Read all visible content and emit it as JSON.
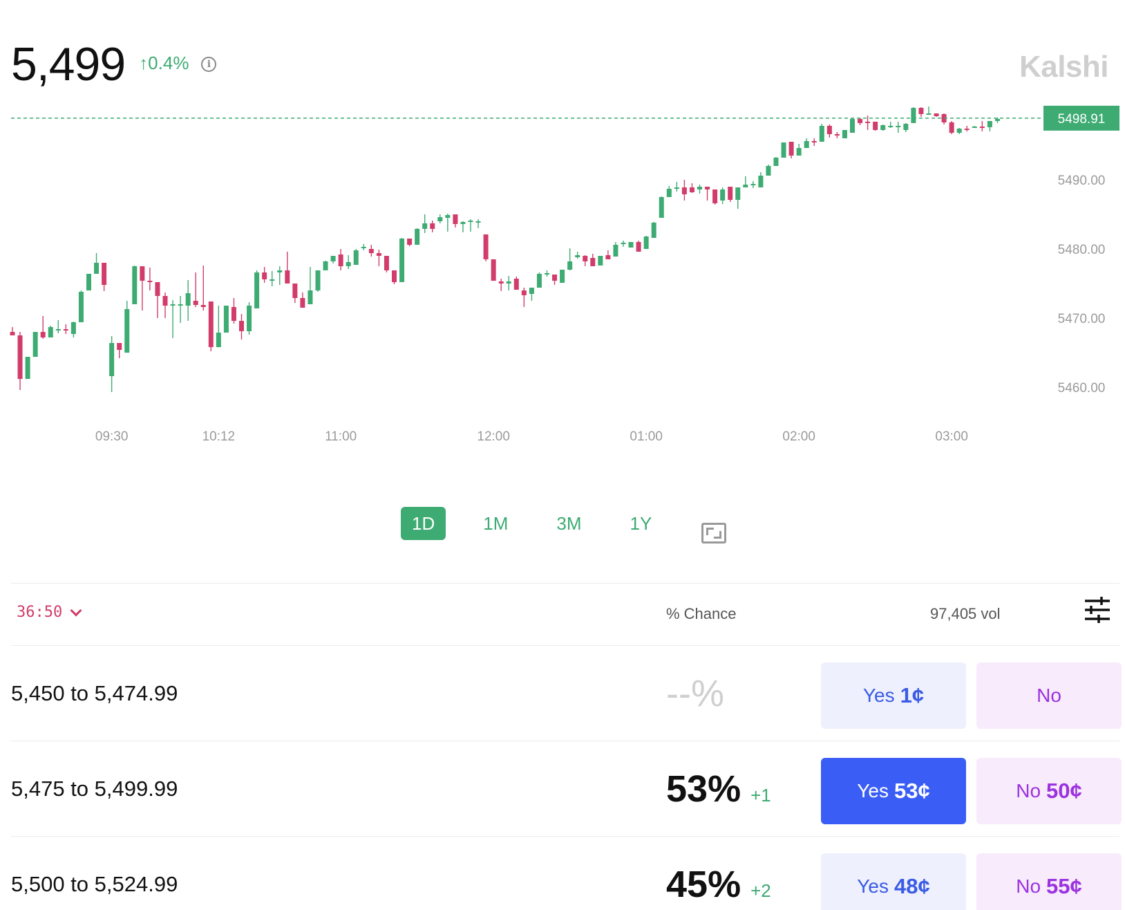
{
  "header": {
    "price": "5,499",
    "change": "↑0.4%",
    "info_icon": "info-icon",
    "brand": "Kalshi"
  },
  "colors": {
    "up": "#3dab72",
    "down": "#d23c6a",
    "yes_bg": "#eef0fd",
    "yes_selected": "#3a5ef5",
    "no_bg": "#f7ebfc"
  },
  "chart_data": {
    "type": "candlestick",
    "current_price_label": "5498.91",
    "current_price": 5498.91,
    "y_ticks": [
      "5490.00",
      "5480.00",
      "5470.00",
      "5460.00"
    ],
    "y_tick_values": [
      5490,
      5480,
      5470,
      5460
    ],
    "ylim": [
      5458,
      5500
    ],
    "x_ticks": [
      "09:30",
      "10:12",
      "11:00",
      "12:00",
      "01:00",
      "02:00",
      "03:00"
    ],
    "x_tick_index": [
      13,
      27,
      43,
      63,
      83,
      103,
      123
    ],
    "grid": false,
    "candles": [
      {
        "o": 5468.0,
        "h": 5468.7,
        "l": 5467.5,
        "c": 5467.5
      },
      {
        "o": 5467.5,
        "h": 5468.0,
        "l": 5459.6,
        "c": 5461.2
      },
      {
        "o": 5461.2,
        "h": 5464.4,
        "l": 5461.2,
        "c": 5464.4
      },
      {
        "o": 5464.4,
        "h": 5468.0,
        "l": 5464.4,
        "c": 5468.0
      },
      {
        "o": 5468.0,
        "h": 5470.3,
        "l": 5467.0,
        "c": 5467.2
      },
      {
        "o": 5467.2,
        "h": 5468.9,
        "l": 5467.2,
        "c": 5468.7
      },
      {
        "o": 5468.4,
        "h": 5469.7,
        "l": 5467.8,
        "c": 5468.4
      },
      {
        "o": 5468.4,
        "h": 5469.1,
        "l": 5467.7,
        "c": 5468.2
      },
      {
        "o": 5467.7,
        "h": 5469.5,
        "l": 5467.2,
        "c": 5469.4
      },
      {
        "o": 5469.4,
        "h": 5474.0,
        "l": 5469.4,
        "c": 5473.8
      },
      {
        "o": 5474.0,
        "h": 5476.4,
        "l": 5474.0,
        "c": 5476.4
      },
      {
        "o": 5476.4,
        "h": 5479.4,
        "l": 5476.4,
        "c": 5478.0
      },
      {
        "o": 5478.0,
        "h": 5478.0,
        "l": 5473.9,
        "c": 5474.8
      },
      {
        "o": 5461.6,
        "h": 5467.4,
        "l": 5459.3,
        "c": 5466.4
      },
      {
        "o": 5466.4,
        "h": 5466.4,
        "l": 5464.2,
        "c": 5465.4
      },
      {
        "o": 5465.0,
        "h": 5472.5,
        "l": 5465.0,
        "c": 5471.3
      },
      {
        "o": 5472.0,
        "h": 5477.6,
        "l": 5472.0,
        "c": 5477.5
      },
      {
        "o": 5477.5,
        "h": 5477.5,
        "l": 5471.1,
        "c": 5475.4
      },
      {
        "o": 5475.4,
        "h": 5477.3,
        "l": 5474.0,
        "c": 5475.2
      },
      {
        "o": 5475.2,
        "h": 5475.2,
        "l": 5470.0,
        "c": 5473.2
      },
      {
        "o": 5473.2,
        "h": 5473.7,
        "l": 5470.0,
        "c": 5471.8
      },
      {
        "o": 5471.8,
        "h": 5472.6,
        "l": 5467.1,
        "c": 5472.0
      },
      {
        "o": 5472.0,
        "h": 5473.2,
        "l": 5469.3,
        "c": 5472.0
      },
      {
        "o": 5471.8,
        "h": 5475.5,
        "l": 5469.6,
        "c": 5473.6
      },
      {
        "o": 5472.5,
        "h": 5476.6,
        "l": 5471.6,
        "c": 5471.9
      },
      {
        "o": 5471.9,
        "h": 5477.6,
        "l": 5471.1,
        "c": 5471.6
      },
      {
        "o": 5472.4,
        "h": 5472.4,
        "l": 5465.2,
        "c": 5465.8
      },
      {
        "o": 5465.8,
        "h": 5471.8,
        "l": 5465.8,
        "c": 5467.9
      },
      {
        "o": 5467.9,
        "h": 5471.8,
        "l": 5467.9,
        "c": 5471.8
      },
      {
        "o": 5471.6,
        "h": 5472.9,
        "l": 5469.2,
        "c": 5469.6
      },
      {
        "o": 5469.6,
        "h": 5470.6,
        "l": 5466.9,
        "c": 5468.1
      },
      {
        "o": 5468.1,
        "h": 5472.3,
        "l": 5467.6,
        "c": 5471.8
      },
      {
        "o": 5471.4,
        "h": 5476.9,
        "l": 5471.4,
        "c": 5476.6
      },
      {
        "o": 5476.6,
        "h": 5477.4,
        "l": 5475.1,
        "c": 5475.6
      },
      {
        "o": 5475.6,
        "h": 5476.8,
        "l": 5474.6,
        "c": 5475.6
      },
      {
        "o": 5476.6,
        "h": 5477.5,
        "l": 5474.8,
        "c": 5476.9
      },
      {
        "o": 5476.9,
        "h": 5479.6,
        "l": 5475.1,
        "c": 5475.0
      },
      {
        "o": 5475.0,
        "h": 5475.0,
        "l": 5472.2,
        "c": 5472.9
      },
      {
        "o": 5472.9,
        "h": 5473.7,
        "l": 5471.5,
        "c": 5471.5
      },
      {
        "o": 5472.0,
        "h": 5477.4,
        "l": 5472.0,
        "c": 5474.0
      },
      {
        "o": 5474.0,
        "h": 5476.9,
        "l": 5473.8,
        "c": 5476.9
      },
      {
        "o": 5476.9,
        "h": 5478.3,
        "l": 5476.9,
        "c": 5478.2
      },
      {
        "o": 5478.2,
        "h": 5479.0,
        "l": 5477.9,
        "c": 5479.0
      },
      {
        "o": 5479.2,
        "h": 5480.0,
        "l": 5476.9,
        "c": 5477.5
      },
      {
        "o": 5477.5,
        "h": 5479.1,
        "l": 5477.1,
        "c": 5478.1
      },
      {
        "o": 5477.7,
        "h": 5480.0,
        "l": 5477.7,
        "c": 5479.8
      },
      {
        "o": 5480.3,
        "h": 5480.7,
        "l": 5479.8,
        "c": 5480.3
      },
      {
        "o": 5480.0,
        "h": 5480.6,
        "l": 5478.9,
        "c": 5479.4
      },
      {
        "o": 5479.4,
        "h": 5479.9,
        "l": 5477.5,
        "c": 5479.0
      },
      {
        "o": 5479.0,
        "h": 5479.0,
        "l": 5476.6,
        "c": 5476.9
      },
      {
        "o": 5476.9,
        "h": 5476.9,
        "l": 5474.9,
        "c": 5475.2
      },
      {
        "o": 5475.2,
        "h": 5481.6,
        "l": 5475.2,
        "c": 5481.5
      },
      {
        "o": 5481.5,
        "h": 5481.5,
        "l": 5480.4,
        "c": 5480.6
      },
      {
        "o": 5480.6,
        "h": 5483.0,
        "l": 5480.6,
        "c": 5482.9
      },
      {
        "o": 5482.9,
        "h": 5485.0,
        "l": 5482.3,
        "c": 5483.7
      },
      {
        "o": 5483.7,
        "h": 5484.1,
        "l": 5482.4,
        "c": 5482.9
      },
      {
        "o": 5484.0,
        "h": 5485.0,
        "l": 5483.7,
        "c": 5484.6
      },
      {
        "o": 5484.5,
        "h": 5485.1,
        "l": 5482.5,
        "c": 5484.9
      },
      {
        "o": 5485.0,
        "h": 5485.0,
        "l": 5483.1,
        "c": 5483.6
      },
      {
        "o": 5483.6,
        "h": 5484.0,
        "l": 5482.4,
        "c": 5483.9
      },
      {
        "o": 5484.1,
        "h": 5484.3,
        "l": 5482.5,
        "c": 5484.1
      },
      {
        "o": 5484.0,
        "h": 5484.3,
        "l": 5483.0,
        "c": 5484.0
      },
      {
        "o": 5482.1,
        "h": 5482.1,
        "l": 5478.2,
        "c": 5478.5
      },
      {
        "o": 5478.5,
        "h": 5478.5,
        "l": 5475.5,
        "c": 5475.4
      },
      {
        "o": 5475.3,
        "h": 5475.7,
        "l": 5473.9,
        "c": 5475.0
      },
      {
        "o": 5475.0,
        "h": 5476.1,
        "l": 5474.0,
        "c": 5475.3
      },
      {
        "o": 5475.7,
        "h": 5476.0,
        "l": 5474.4,
        "c": 5474.1
      },
      {
        "o": 5474.0,
        "h": 5474.4,
        "l": 5471.6,
        "c": 5473.3
      },
      {
        "o": 5473.5,
        "h": 5474.4,
        "l": 5472.5,
        "c": 5474.4
      },
      {
        "o": 5474.4,
        "h": 5476.6,
        "l": 5474.4,
        "c": 5476.4
      },
      {
        "o": 5476.4,
        "h": 5476.9,
        "l": 5476.0,
        "c": 5476.5
      },
      {
        "o": 5476.3,
        "h": 5476.3,
        "l": 5474.8,
        "c": 5475.4
      },
      {
        "o": 5475.1,
        "h": 5477.0,
        "l": 5475.1,
        "c": 5477.0
      },
      {
        "o": 5477.0,
        "h": 5480.1,
        "l": 5476.9,
        "c": 5478.2
      },
      {
        "o": 5478.8,
        "h": 5479.6,
        "l": 5478.6,
        "c": 5479.1
      },
      {
        "o": 5479.0,
        "h": 5479.1,
        "l": 5477.5,
        "c": 5478.2
      },
      {
        "o": 5478.7,
        "h": 5479.3,
        "l": 5477.5,
        "c": 5477.5
      },
      {
        "o": 5477.6,
        "h": 5479.0,
        "l": 5477.6,
        "c": 5479.0
      },
      {
        "o": 5479.1,
        "h": 5479.8,
        "l": 5478.5,
        "c": 5478.5
      },
      {
        "o": 5478.9,
        "h": 5481.0,
        "l": 5478.9,
        "c": 5480.6
      },
      {
        "o": 5480.8,
        "h": 5481.2,
        "l": 5480.3,
        "c": 5480.9
      },
      {
        "o": 5480.2,
        "h": 5480.7,
        "l": 5480.2,
        "c": 5481.0
      },
      {
        "o": 5481.0,
        "h": 5481.2,
        "l": 5479.6,
        "c": 5479.6
      },
      {
        "o": 5480.0,
        "h": 5481.9,
        "l": 5480.0,
        "c": 5481.8
      },
      {
        "o": 5481.6,
        "h": 5483.9,
        "l": 5481.6,
        "c": 5483.8
      },
      {
        "o": 5484.5,
        "h": 5487.6,
        "l": 5484.5,
        "c": 5487.5
      },
      {
        "o": 5487.5,
        "h": 5489.1,
        "l": 5487.5,
        "c": 5488.7
      },
      {
        "o": 5488.7,
        "h": 5489.7,
        "l": 5488.3,
        "c": 5488.9
      },
      {
        "o": 5488.9,
        "h": 5490.0,
        "l": 5487.0,
        "c": 5487.9
      },
      {
        "o": 5488.9,
        "h": 5489.5,
        "l": 5488.1,
        "c": 5488.2
      },
      {
        "o": 5488.6,
        "h": 5489.3,
        "l": 5488.0,
        "c": 5489.0
      },
      {
        "o": 5489.0,
        "h": 5489.0,
        "l": 5487.0,
        "c": 5488.6
      },
      {
        "o": 5488.6,
        "h": 5488.6,
        "l": 5486.4,
        "c": 5486.6
      },
      {
        "o": 5487.0,
        "h": 5488.9,
        "l": 5486.5,
        "c": 5488.6
      },
      {
        "o": 5489.0,
        "h": 5489.0,
        "l": 5486.8,
        "c": 5487.1
      },
      {
        "o": 5487.1,
        "h": 5488.9,
        "l": 5485.8,
        "c": 5488.9
      },
      {
        "o": 5488.9,
        "h": 5490.5,
        "l": 5488.9,
        "c": 5489.3
      },
      {
        "o": 5489.3,
        "h": 5489.8,
        "l": 5488.8,
        "c": 5489.4
      },
      {
        "o": 5488.9,
        "h": 5491.1,
        "l": 5488.9,
        "c": 5490.6
      },
      {
        "o": 5490.6,
        "h": 5492.2,
        "l": 5490.6,
        "c": 5492.0
      },
      {
        "o": 5492.0,
        "h": 5493.3,
        "l": 5492.0,
        "c": 5493.2
      },
      {
        "o": 5493.2,
        "h": 5495.4,
        "l": 5493.2,
        "c": 5495.4
      },
      {
        "o": 5495.5,
        "h": 5495.5,
        "l": 5493.1,
        "c": 5493.5
      },
      {
        "o": 5493.5,
        "h": 5495.2,
        "l": 5493.5,
        "c": 5494.6
      },
      {
        "o": 5494.6,
        "h": 5496.0,
        "l": 5494.6,
        "c": 5495.6
      },
      {
        "o": 5495.6,
        "h": 5496.0,
        "l": 5494.9,
        "c": 5495.5
      },
      {
        "o": 5495.5,
        "h": 5498.1,
        "l": 5495.5,
        "c": 5497.8
      },
      {
        "o": 5497.8,
        "h": 5498.0,
        "l": 5496.1,
        "c": 5496.6
      },
      {
        "o": 5496.6,
        "h": 5496.9,
        "l": 5496.0,
        "c": 5496.4
      },
      {
        "o": 5496.0,
        "h": 5497.2,
        "l": 5496.0,
        "c": 5497.2
      },
      {
        "o": 5496.8,
        "h": 5499.0,
        "l": 5496.8,
        "c": 5498.8
      },
      {
        "o": 5498.8,
        "h": 5499.0,
        "l": 5497.9,
        "c": 5498.2
      },
      {
        "o": 5498.4,
        "h": 5499.3,
        "l": 5497.2,
        "c": 5498.2
      },
      {
        "o": 5498.4,
        "h": 5498.4,
        "l": 5497.1,
        "c": 5497.2
      },
      {
        "o": 5497.2,
        "h": 5498.0,
        "l": 5497.1,
        "c": 5497.9
      },
      {
        "o": 5497.6,
        "h": 5498.4,
        "l": 5497.5,
        "c": 5497.8
      },
      {
        "o": 5497.8,
        "h": 5498.4,
        "l": 5496.8,
        "c": 5497.8
      },
      {
        "o": 5497.2,
        "h": 5498.2,
        "l": 5496.9,
        "c": 5498.1
      },
      {
        "o": 5498.2,
        "h": 5500.5,
        "l": 5498.2,
        "c": 5500.4
      },
      {
        "o": 5500.4,
        "h": 5500.5,
        "l": 5499.1,
        "c": 5499.5
      },
      {
        "o": 5499.5,
        "h": 5500.6,
        "l": 5499.4,
        "c": 5499.6
      },
      {
        "o": 5499.6,
        "h": 5499.6,
        "l": 5499.1,
        "c": 5499.2
      },
      {
        "o": 5499.5,
        "h": 5499.6,
        "l": 5498.0,
        "c": 5498.3
      },
      {
        "o": 5498.3,
        "h": 5498.5,
        "l": 5496.6,
        "c": 5496.8
      },
      {
        "o": 5496.8,
        "h": 5497.5,
        "l": 5496.6,
        "c": 5497.4
      },
      {
        "o": 5497.4,
        "h": 5497.8,
        "l": 5497.0,
        "c": 5497.3
      },
      {
        "o": 5497.5,
        "h": 5497.8,
        "l": 5497.5,
        "c": 5497.7
      },
      {
        "o": 5497.7,
        "h": 5498.5,
        "l": 5497.0,
        "c": 5497.6
      },
      {
        "o": 5497.6,
        "h": 5498.5,
        "l": 5497.0,
        "c": 5498.5
      },
      {
        "o": 5498.5,
        "h": 5499.0,
        "l": 5498.2,
        "c": 5498.8
      }
    ]
  },
  "ranges": [
    {
      "label": "1D",
      "active": true
    },
    {
      "label": "1M",
      "active": false
    },
    {
      "label": "3M",
      "active": false
    },
    {
      "label": "1Y",
      "active": false
    }
  ],
  "subheader": {
    "timer": "36:50",
    "chance_label": "% Chance",
    "volume": "97,405 vol"
  },
  "markets": [
    {
      "range": "5,450 to 5,474.99",
      "chance": "--%",
      "delta": "",
      "yes_prefix": "Yes",
      "yes_price": "1¢",
      "no_prefix": "No",
      "no_price": "",
      "yes_selected": false
    },
    {
      "range": "5,475 to 5,499.99",
      "chance": "53%",
      "delta": "+1",
      "yes_prefix": "Yes",
      "yes_price": "53¢",
      "no_prefix": "No",
      "no_price": "50¢",
      "yes_selected": true
    },
    {
      "range": "5,500 to 5,524.99",
      "chance": "45%",
      "delta": "+2",
      "yes_prefix": "Yes",
      "yes_price": "48¢",
      "no_prefix": "No",
      "no_price": "55¢",
      "yes_selected": false
    }
  ]
}
